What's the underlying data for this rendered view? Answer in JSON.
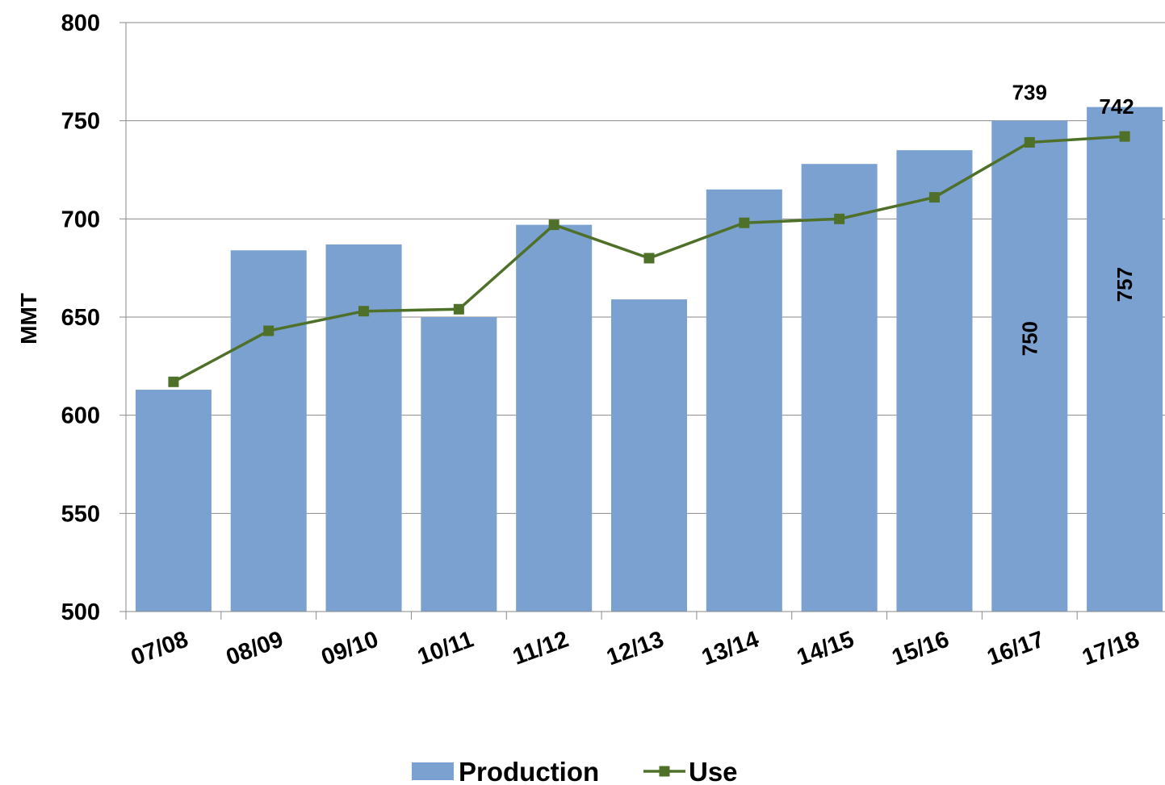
{
  "chart_data": {
    "type": "bar",
    "title": "",
    "xlabel": "",
    "ylabel": "MMT",
    "ylim": [
      500,
      800
    ],
    "yticks": [
      500,
      550,
      600,
      650,
      700,
      750,
      800
    ],
    "categories": [
      "07/08",
      "08/09",
      "09/10",
      "10/11",
      "11/12",
      "12/13",
      "13/14",
      "14/15",
      "15/16",
      "16/17",
      "17/18"
    ],
    "series": [
      {
        "name": "Production",
        "type": "bar",
        "color": "#7BA1D0",
        "values": [
          613,
          684,
          687,
          650,
          697,
          659,
          715,
          728,
          735,
          750,
          757
        ],
        "labels": [
          "",
          "",
          "",
          "",
          "",
          "",
          "",
          "",
          "",
          "750",
          "757"
        ]
      },
      {
        "name": "Use",
        "type": "line",
        "color": "#4F7029",
        "marker": "square",
        "values": [
          617,
          643,
          653,
          654,
          697,
          680,
          698,
          700,
          711,
          739,
          742
        ],
        "labels": [
          "",
          "",
          "",
          "",
          "",
          "",
          "",
          "",
          "",
          "739",
          "742"
        ]
      }
    ],
    "grid": true,
    "legend": "bottom"
  }
}
